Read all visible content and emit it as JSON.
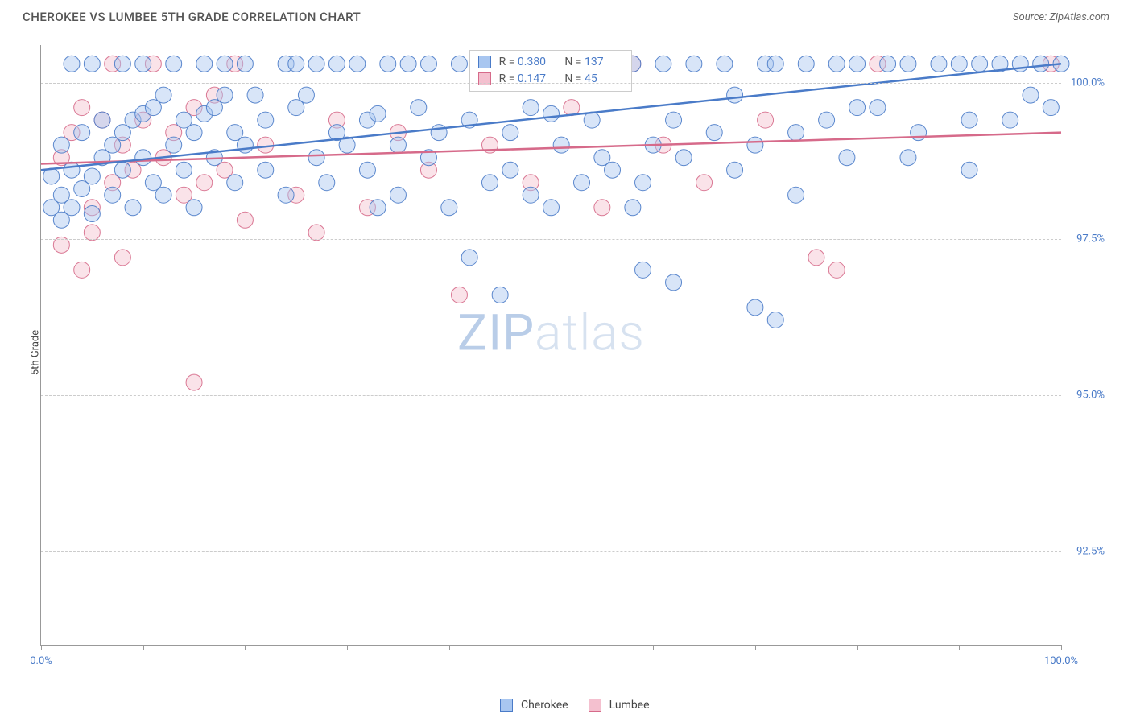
{
  "title": "CHEROKEE VS LUMBEE 5TH GRADE CORRELATION CHART",
  "source": "Source: ZipAtlas.com",
  "watermark": {
    "part1": "ZIP",
    "part2": "atlas"
  },
  "ylabel": "5th Grade",
  "chart": {
    "type": "scatter",
    "xlim": [
      0,
      100
    ],
    "ylim": [
      91.0,
      100.6
    ],
    "x_ticks": [
      0,
      10,
      20,
      30,
      40,
      50,
      60,
      70,
      80,
      90,
      100
    ],
    "x_tick_labels": {
      "0": "0.0%",
      "100": "100.0%"
    },
    "y_gridlines": [
      92.5,
      95.0,
      97.5,
      100.0
    ],
    "y_tick_labels": [
      "92.5%",
      "95.0%",
      "97.5%",
      "100.0%"
    ],
    "background_color": "#ffffff",
    "grid_color": "#cccccc",
    "axis_color": "#999999",
    "tick_label_color": "#4a7bc8",
    "marker_radius": 10,
    "marker_opacity": 0.45,
    "marker_stroke_opacity": 0.9,
    "line_width": 2.5
  },
  "series": {
    "cherokee": {
      "label": "Cherokee",
      "color": "#6d9be8",
      "fill": "#a8c6f0",
      "stroke": "#4a7bc8",
      "R": "0.380",
      "N": "137",
      "trend": {
        "x1": 0,
        "y1": 98.6,
        "x2": 100,
        "y2": 100.3
      },
      "points": [
        [
          1,
          98.0
        ],
        [
          1,
          98.5
        ],
        [
          2,
          98.2
        ],
        [
          2,
          97.8
        ],
        [
          2,
          99.0
        ],
        [
          3,
          98.6
        ],
        [
          3,
          100.3
        ],
        [
          3,
          98.0
        ],
        [
          4,
          98.3
        ],
        [
          4,
          99.2
        ],
        [
          5,
          98.5
        ],
        [
          5,
          97.9
        ],
        [
          5,
          100.3
        ],
        [
          6,
          98.8
        ],
        [
          6,
          99.4
        ],
        [
          7,
          99.0
        ],
        [
          7,
          98.2
        ],
        [
          8,
          99.2
        ],
        [
          8,
          100.3
        ],
        [
          8,
          98.6
        ],
        [
          9,
          99.4
        ],
        [
          9,
          98.0
        ],
        [
          10,
          99.5
        ],
        [
          10,
          100.3
        ],
        [
          10,
          98.8
        ],
        [
          11,
          98.4
        ],
        [
          11,
          99.6
        ],
        [
          12,
          99.8
        ],
        [
          12,
          98.2
        ],
        [
          13,
          99.0
        ],
        [
          13,
          100.3
        ],
        [
          14,
          98.6
        ],
        [
          14,
          99.4
        ],
        [
          15,
          99.2
        ],
        [
          15,
          98.0
        ],
        [
          16,
          99.5
        ],
        [
          16,
          100.3
        ],
        [
          17,
          98.8
        ],
        [
          17,
          99.6
        ],
        [
          18,
          99.8
        ],
        [
          18,
          100.3
        ],
        [
          19,
          98.4
        ],
        [
          19,
          99.2
        ],
        [
          20,
          99.0
        ],
        [
          20,
          100.3
        ],
        [
          22,
          98.6
        ],
        [
          22,
          99.4
        ],
        [
          24,
          100.3
        ],
        [
          24,
          98.2
        ],
        [
          25,
          99.6
        ],
        [
          25,
          100.3
        ],
        [
          26,
          99.8
        ],
        [
          27,
          98.8
        ],
        [
          27,
          100.3
        ],
        [
          28,
          98.4
        ],
        [
          29,
          99.2
        ],
        [
          29,
          100.3
        ],
        [
          30,
          99.0
        ],
        [
          31,
          100.3
        ],
        [
          32,
          99.4
        ],
        [
          32,
          98.6
        ],
        [
          33,
          99.5
        ],
        [
          34,
          100.3
        ],
        [
          35,
          99.0
        ],
        [
          35,
          98.2
        ],
        [
          36,
          100.3
        ],
        [
          37,
          99.6
        ],
        [
          38,
          98.8
        ],
        [
          38,
          100.3
        ],
        [
          39,
          99.2
        ],
        [
          40,
          98.0
        ],
        [
          41,
          100.3
        ],
        [
          42,
          99.4
        ],
        [
          44,
          98.4
        ],
        [
          45,
          96.6
        ],
        [
          45,
          100.3
        ],
        [
          46,
          98.6
        ],
        [
          48,
          99.6
        ],
        [
          48,
          98.2
        ],
        [
          49,
          100.3
        ],
        [
          50,
          98.0
        ],
        [
          51,
          99.0
        ],
        [
          52,
          100.3
        ],
        [
          53,
          98.4
        ],
        [
          54,
          99.4
        ],
        [
          55,
          100.3
        ],
        [
          56,
          98.6
        ],
        [
          58,
          98.0
        ],
        [
          58,
          100.3
        ],
        [
          59,
          97.0
        ],
        [
          60,
          99.0
        ],
        [
          61,
          100.3
        ],
        [
          62,
          96.8
        ],
        [
          63,
          98.8
        ],
        [
          64,
          100.3
        ],
        [
          66,
          99.2
        ],
        [
          67,
          100.3
        ],
        [
          68,
          98.6
        ],
        [
          70,
          99.0
        ],
        [
          71,
          100.3
        ],
        [
          72,
          96.2
        ],
        [
          72,
          100.3
        ],
        [
          74,
          98.2
        ],
        [
          75,
          100.3
        ],
        [
          77,
          99.4
        ],
        [
          78,
          100.3
        ],
        [
          79,
          98.8
        ],
        [
          80,
          100.3
        ],
        [
          82,
          99.6
        ],
        [
          83,
          100.3
        ],
        [
          70,
          96.4
        ],
        [
          85,
          100.3
        ],
        [
          86,
          99.2
        ],
        [
          88,
          100.3
        ],
        [
          90,
          100.3
        ],
        [
          91,
          98.6
        ],
        [
          92,
          100.3
        ],
        [
          94,
          100.3
        ],
        [
          95,
          99.4
        ],
        [
          96,
          100.3
        ],
        [
          97,
          99.8
        ],
        [
          98,
          100.3
        ],
        [
          99,
          99.6
        ],
        [
          100,
          100.3
        ],
        [
          42,
          97.2
        ],
        [
          50,
          99.5
        ],
        [
          55,
          98.8
        ],
        [
          62,
          99.4
        ],
        [
          68,
          99.8
        ],
        [
          74,
          99.2
        ],
        [
          80,
          99.6
        ],
        [
          85,
          98.8
        ],
        [
          91,
          99.4
        ],
        [
          21,
          99.8
        ],
        [
          33,
          98.0
        ],
        [
          46,
          99.2
        ],
        [
          59,
          98.4
        ]
      ]
    },
    "lumbee": {
      "label": "Lumbee",
      "color": "#e890a8",
      "fill": "#f4c0cf",
      "stroke": "#d66a8a",
      "R": "0.147",
      "N": "45",
      "trend": {
        "x1": 0,
        "y1": 98.7,
        "x2": 100,
        "y2": 99.2
      },
      "points": [
        [
          2,
          98.8
        ],
        [
          2,
          97.4
        ],
        [
          3,
          99.2
        ],
        [
          4,
          99.6
        ],
        [
          4,
          97.0
        ],
        [
          5,
          98.0
        ],
        [
          5,
          97.6
        ],
        [
          6,
          99.4
        ],
        [
          7,
          98.4
        ],
        [
          7,
          100.3
        ],
        [
          8,
          99.0
        ],
        [
          8,
          97.2
        ],
        [
          9,
          98.6
        ],
        [
          10,
          99.4
        ],
        [
          11,
          100.3
        ],
        [
          12,
          98.8
        ],
        [
          13,
          99.2
        ],
        [
          14,
          98.2
        ],
        [
          15,
          99.6
        ],
        [
          15,
          95.2
        ],
        [
          16,
          98.4
        ],
        [
          17,
          99.8
        ],
        [
          18,
          98.6
        ],
        [
          19,
          100.3
        ],
        [
          20,
          97.8
        ],
        [
          22,
          99.0
        ],
        [
          25,
          98.2
        ],
        [
          27,
          97.6
        ],
        [
          29,
          99.4
        ],
        [
          32,
          98.0
        ],
        [
          35,
          99.2
        ],
        [
          38,
          98.6
        ],
        [
          41,
          96.6
        ],
        [
          44,
          99.0
        ],
        [
          48,
          98.4
        ],
        [
          52,
          99.6
        ],
        [
          55,
          98.0
        ],
        [
          58,
          100.3
        ],
        [
          61,
          99.0
        ],
        [
          65,
          98.4
        ],
        [
          71,
          99.4
        ],
        [
          76,
          97.2
        ],
        [
          78,
          97.0
        ],
        [
          82,
          100.3
        ],
        [
          99,
          100.3
        ]
      ]
    }
  },
  "stats_box": {
    "R_label": "R =",
    "N_label": "N ="
  },
  "legend": {
    "s1": "Cherokee",
    "s2": "Lumbee"
  }
}
